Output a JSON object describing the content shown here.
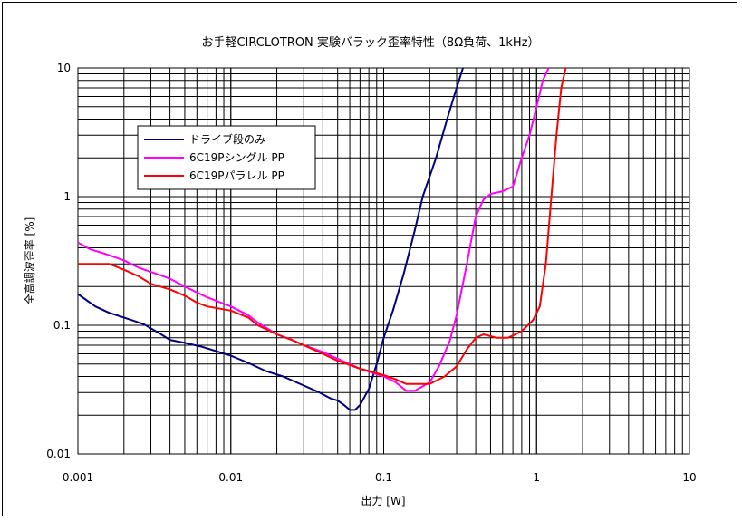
{
  "chart_data": {
    "type": "line",
    "title": "お手軽CIRCLOTRON 実験バラック歪率特性（8Ω負荷、1kHz）",
    "xlabel": "出力 [W]",
    "ylabel": "全高調波歪率 [%]",
    "xscale": "log",
    "yscale": "log",
    "xlim": [
      0.001,
      10
    ],
    "ylim": [
      0.01,
      10
    ],
    "grid": true,
    "legend_position": "upper-left",
    "x_tick_labels": [
      "0.001",
      "0.01",
      "0.1",
      "1",
      "10"
    ],
    "y_tick_labels": [
      "0.01",
      "0.1",
      "1",
      "10"
    ],
    "series": [
      {
        "name": "ドライブ段のみ",
        "color": "#000080",
        "points": [
          [
            0.001,
            0.175
          ],
          [
            0.0013,
            0.14
          ],
          [
            0.0016,
            0.125
          ],
          [
            0.002,
            0.115
          ],
          [
            0.0027,
            0.102
          ],
          [
            0.0035,
            0.085
          ],
          [
            0.004,
            0.077
          ],
          [
            0.005,
            0.073
          ],
          [
            0.0065,
            0.068
          ],
          [
            0.008,
            0.063
          ],
          [
            0.01,
            0.058
          ],
          [
            0.013,
            0.051
          ],
          [
            0.017,
            0.044
          ],
          [
            0.022,
            0.04
          ],
          [
            0.03,
            0.034
          ],
          [
            0.038,
            0.03
          ],
          [
            0.045,
            0.027
          ],
          [
            0.05,
            0.026
          ],
          [
            0.055,
            0.024
          ],
          [
            0.06,
            0.022
          ],
          [
            0.065,
            0.022
          ],
          [
            0.07,
            0.024
          ],
          [
            0.08,
            0.032
          ],
          [
            0.09,
            0.05
          ],
          [
            0.1,
            0.08
          ],
          [
            0.115,
            0.13
          ],
          [
            0.135,
            0.25
          ],
          [
            0.16,
            0.55
          ],
          [
            0.18,
            1.0
          ],
          [
            0.22,
            2.0
          ],
          [
            0.26,
            4.0
          ],
          [
            0.3,
            7.0
          ],
          [
            0.33,
            10.0
          ]
        ]
      },
      {
        "name": "6C19Pシングル PP",
        "color": "#ff00ff",
        "points": [
          [
            0.001,
            0.44
          ],
          [
            0.0012,
            0.39
          ],
          [
            0.0015,
            0.36
          ],
          [
            0.002,
            0.32
          ],
          [
            0.0025,
            0.28
          ],
          [
            0.003,
            0.26
          ],
          [
            0.004,
            0.23
          ],
          [
            0.005,
            0.2
          ],
          [
            0.007,
            0.165
          ],
          [
            0.01,
            0.14
          ],
          [
            0.013,
            0.12
          ],
          [
            0.015,
            0.105
          ],
          [
            0.02,
            0.085
          ],
          [
            0.025,
            0.077
          ],
          [
            0.03,
            0.07
          ],
          [
            0.04,
            0.062
          ],
          [
            0.05,
            0.055
          ],
          [
            0.07,
            0.046
          ],
          [
            0.1,
            0.04
          ],
          [
            0.12,
            0.036
          ],
          [
            0.14,
            0.031
          ],
          [
            0.16,
            0.031
          ],
          [
            0.2,
            0.036
          ],
          [
            0.23,
            0.048
          ],
          [
            0.27,
            0.075
          ],
          [
            0.3,
            0.12
          ],
          [
            0.35,
            0.3
          ],
          [
            0.4,
            0.7
          ],
          [
            0.45,
            0.95
          ],
          [
            0.5,
            1.05
          ],
          [
            0.6,
            1.1
          ],
          [
            0.7,
            1.2
          ],
          [
            0.8,
            2.0
          ],
          [
            0.9,
            3.0
          ],
          [
            1.0,
            5.0
          ],
          [
            1.1,
            8.0
          ],
          [
            1.2,
            10.0
          ]
        ]
      },
      {
        "name": "6C19Pパラレル PP",
        "color": "#ff0000",
        "points": [
          [
            0.001,
            0.3
          ],
          [
            0.0013,
            0.3
          ],
          [
            0.0016,
            0.3
          ],
          [
            0.002,
            0.27
          ],
          [
            0.0025,
            0.24
          ],
          [
            0.003,
            0.21
          ],
          [
            0.004,
            0.19
          ],
          [
            0.005,
            0.17
          ],
          [
            0.006,
            0.15
          ],
          [
            0.007,
            0.14
          ],
          [
            0.01,
            0.13
          ],
          [
            0.013,
            0.115
          ],
          [
            0.015,
            0.1
          ],
          [
            0.02,
            0.085
          ],
          [
            0.025,
            0.077
          ],
          [
            0.03,
            0.07
          ],
          [
            0.04,
            0.06
          ],
          [
            0.05,
            0.053
          ],
          [
            0.07,
            0.046
          ],
          [
            0.1,
            0.041
          ],
          [
            0.12,
            0.038
          ],
          [
            0.14,
            0.035
          ],
          [
            0.17,
            0.035
          ],
          [
            0.2,
            0.035
          ],
          [
            0.25,
            0.04
          ],
          [
            0.3,
            0.048
          ],
          [
            0.35,
            0.065
          ],
          [
            0.4,
            0.08
          ],
          [
            0.45,
            0.085
          ],
          [
            0.55,
            0.08
          ],
          [
            0.65,
            0.08
          ],
          [
            0.8,
            0.09
          ],
          [
            0.95,
            0.11
          ],
          [
            1.05,
            0.14
          ],
          [
            1.15,
            0.3
          ],
          [
            1.25,
            1.0
          ],
          [
            1.35,
            3.0
          ],
          [
            1.45,
            7.0
          ],
          [
            1.55,
            10.0
          ]
        ]
      }
    ]
  }
}
